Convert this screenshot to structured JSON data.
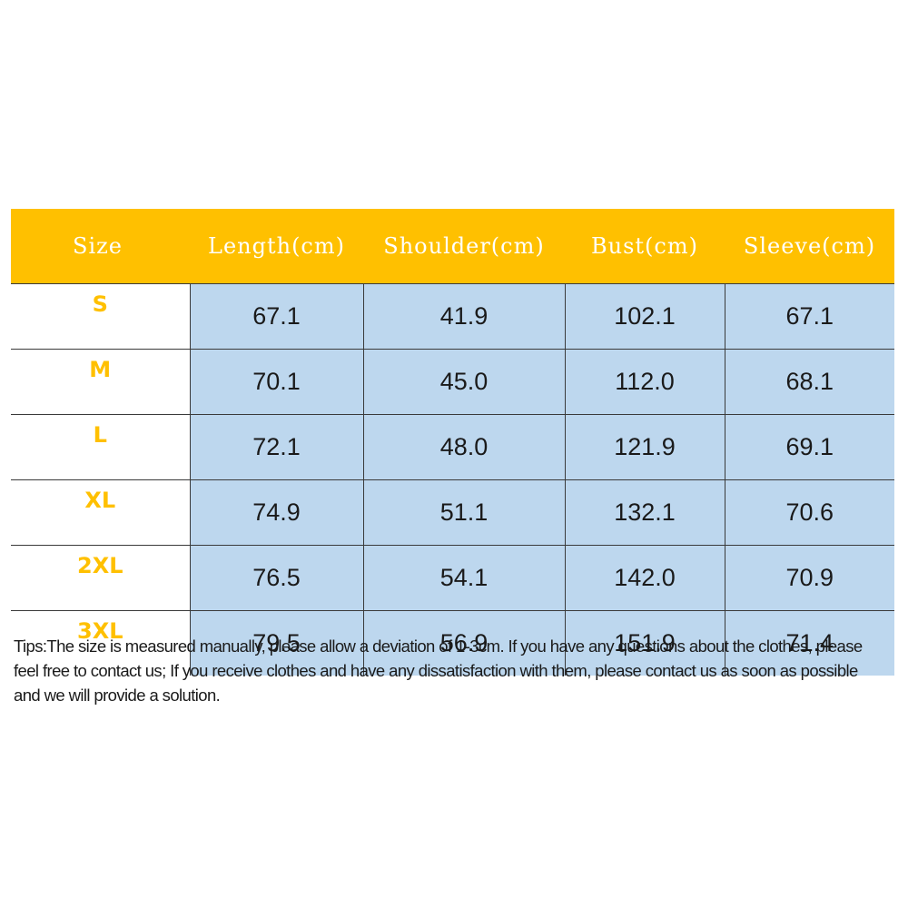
{
  "table": {
    "headers": [
      "Size",
      "Length(cm)",
      "Shoulder(cm)",
      "Bust(cm)",
      "Sleeve(cm)"
    ],
    "rows": [
      {
        "size": "S",
        "values": [
          "67.1",
          "41.9",
          "102.1",
          "67.1"
        ]
      },
      {
        "size": "M",
        "values": [
          "70.1",
          "45.0",
          "112.0",
          "68.1"
        ]
      },
      {
        "size": "L",
        "values": [
          "72.1",
          "48.0",
          "121.9",
          "69.1"
        ]
      },
      {
        "size": "XL",
        "values": [
          "74.9",
          "51.1",
          "132.1",
          "70.6"
        ]
      },
      {
        "size": "2XL",
        "values": [
          "76.5",
          "54.1",
          "142.0",
          "70.9"
        ]
      },
      {
        "size": "3XL",
        "values": [
          "79.5",
          "56.9",
          "151.9",
          "71.4"
        ]
      }
    ]
  },
  "tips": "Tips:The size is measured manually, please allow a deviation of 1-3cm. If you have any questions about the clothes, please feel free to contact us; If you receive clothes and have any dissatisfaction with them, please contact us as soon as possible and we will provide a solution.",
  "colors": {
    "header_background": "#ffc000",
    "header_text": "#ffffff",
    "size_label_text": "#ffc000",
    "value_cell_background": "#bdd7ee"
  }
}
